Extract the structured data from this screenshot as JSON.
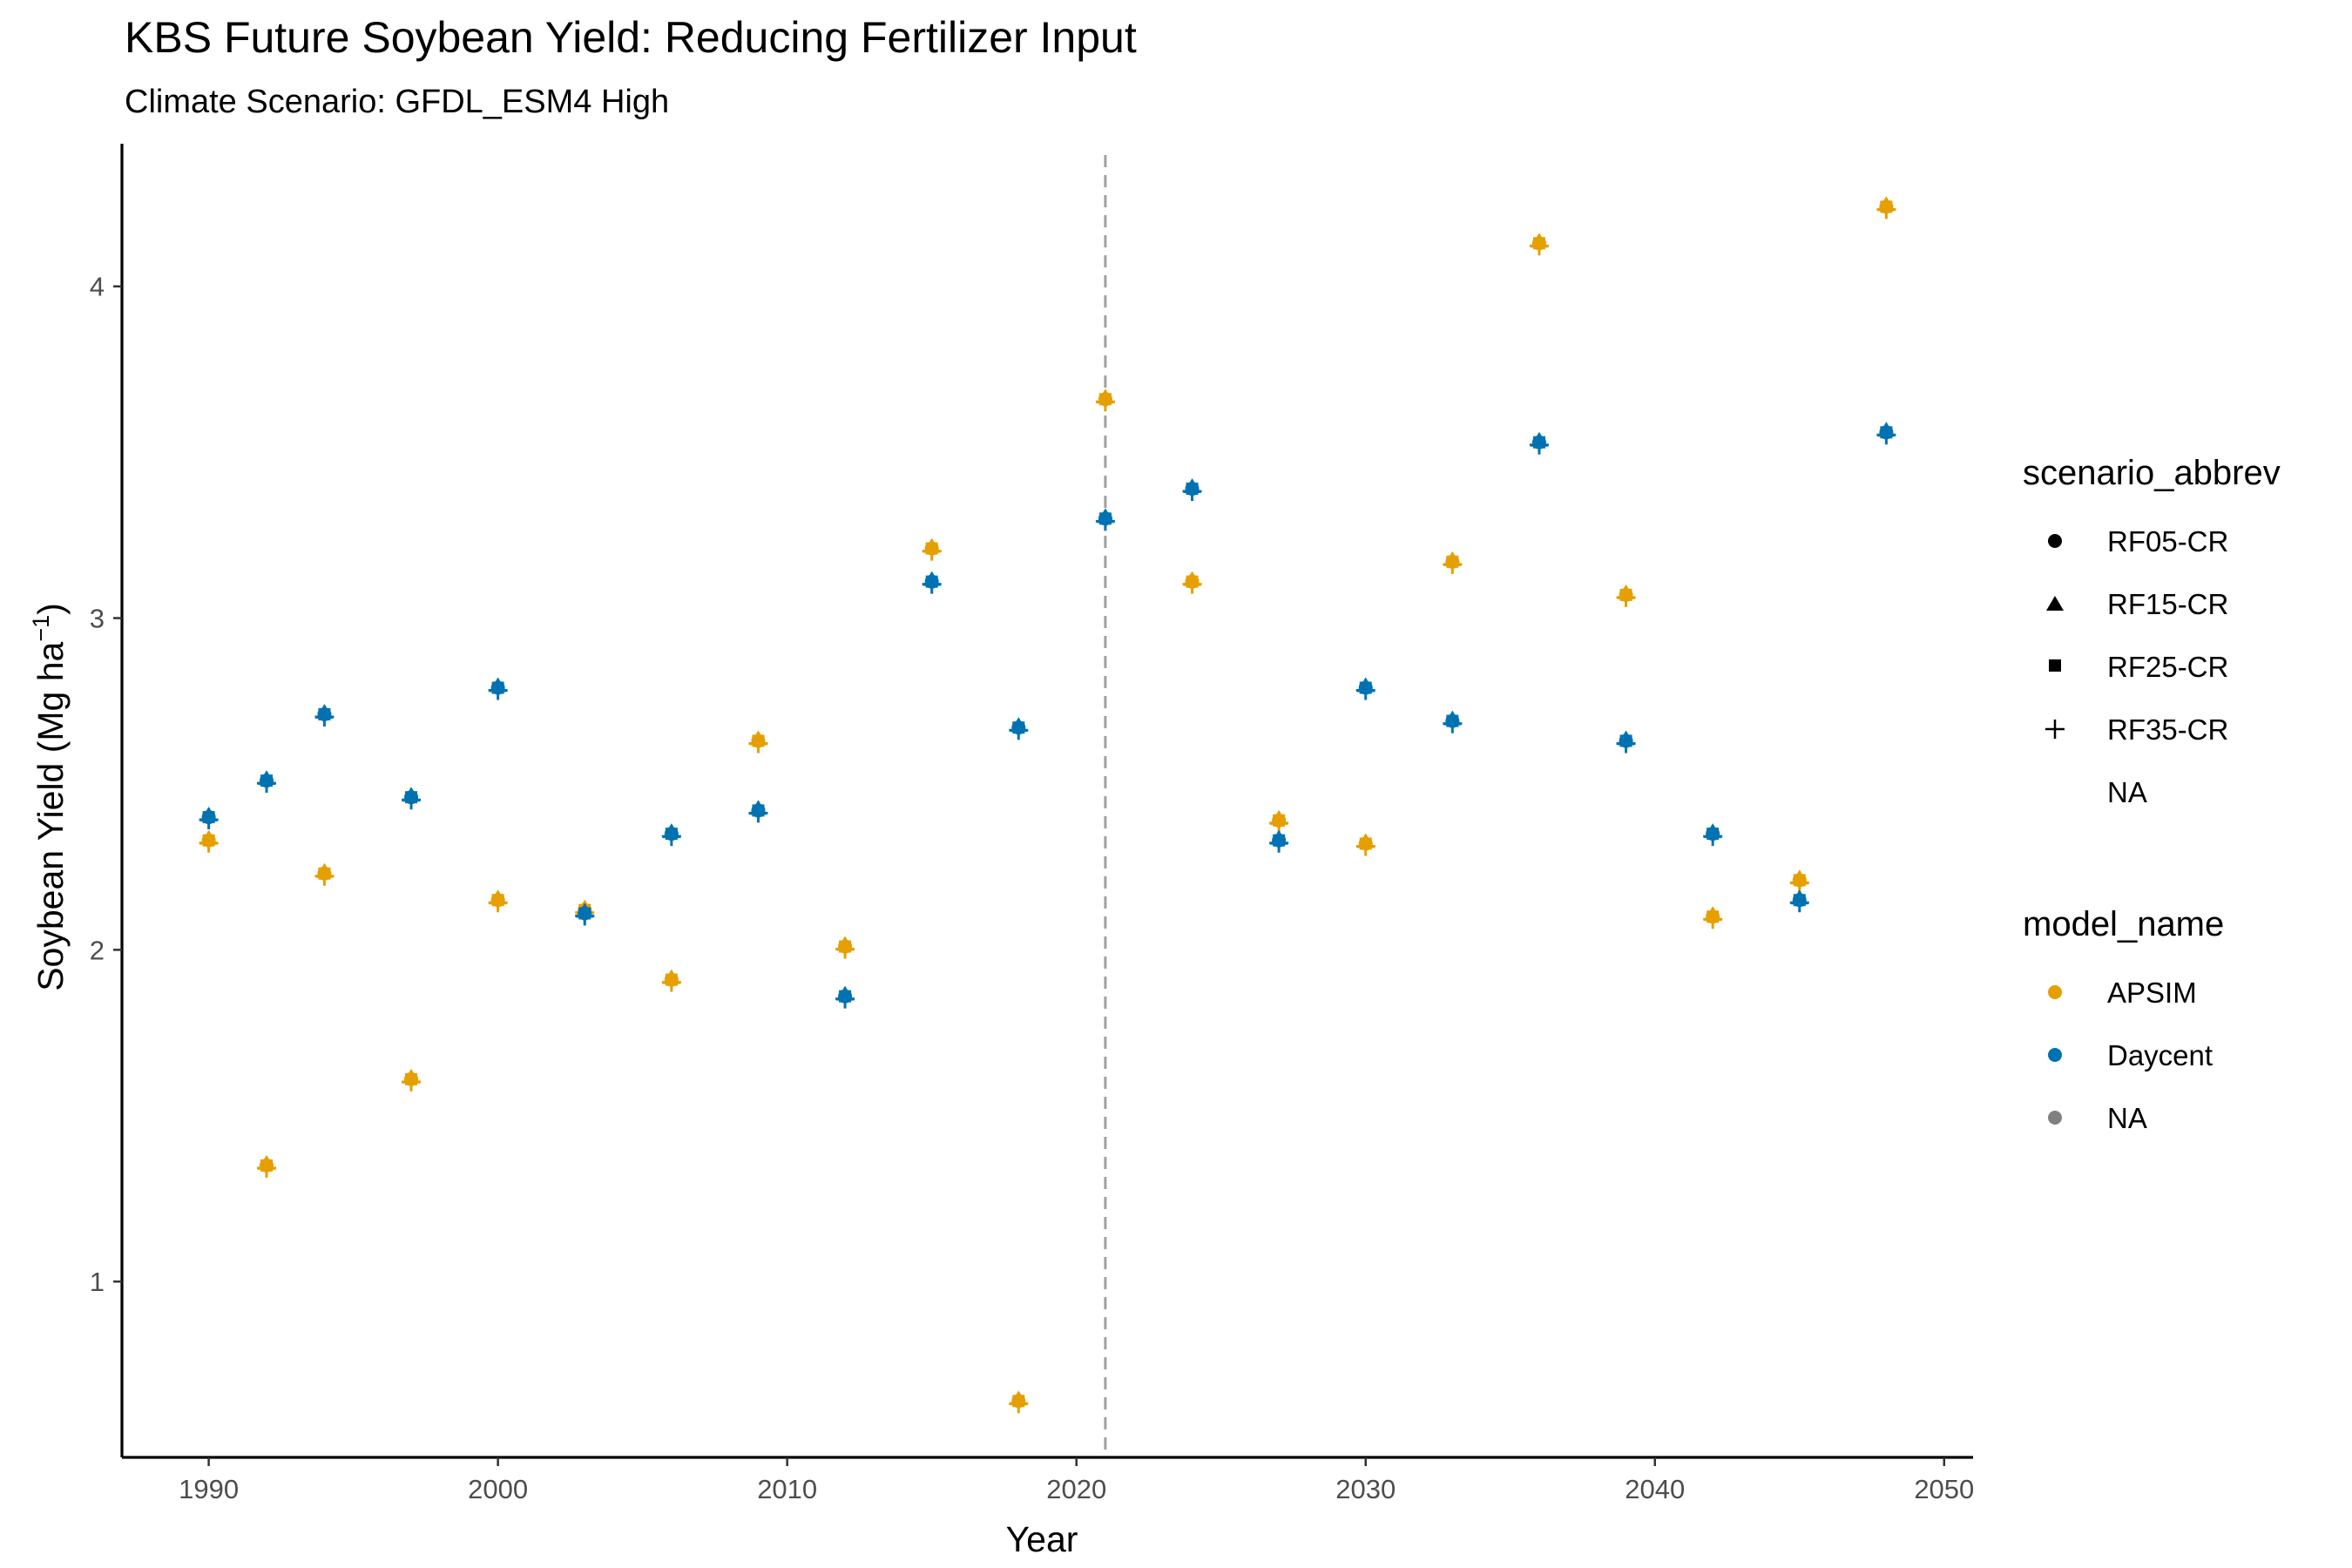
{
  "chart_data": {
    "type": "scatter",
    "title": "KBS Future Soybean Yield: Reducing Fertilizer Input",
    "subtitle": "Climate Scenario: GFDL_ESM4 High",
    "xlabel": "Year",
    "ylabel": {
      "text": "Soybean Yield (Mg ha",
      "superscript": "−1",
      "close": ")"
    },
    "xlim": [
      1987,
      2051
    ],
    "ylim": [
      0.47,
      4.43
    ],
    "xticks": [
      1990,
      2000,
      2010,
      2020,
      2030,
      2040,
      2050
    ],
    "yticks": [
      1,
      2,
      3,
      4
    ],
    "xtick_labels": [
      "1990",
      "2000",
      "2010",
      "2020",
      "2030",
      "2040",
      "2050"
    ],
    "ytick_labels": [
      "1",
      "2",
      "3",
      "4"
    ],
    "reference_line": {
      "x": 2021,
      "style": "dashed",
      "color": "#a0a0a0"
    },
    "grid": false,
    "legend_position": "right",
    "series": [
      {
        "name": "APSIM",
        "color": "#E69F00",
        "x": [
          1990,
          1992,
          1994,
          1997,
          2000,
          2003,
          2006,
          2009,
          2012,
          2015,
          2018,
          2021,
          2024,
          2027,
          2030,
          2033,
          2036,
          2039,
          2042,
          2045,
          2048
        ],
        "y": [
          2.33,
          1.35,
          2.23,
          1.61,
          2.15,
          2.12,
          1.91,
          2.63,
          2.01,
          3.21,
          0.64,
          3.66,
          3.11,
          2.39,
          2.32,
          3.17,
          4.13,
          3.07,
          2.1,
          2.21,
          4.24
        ]
      },
      {
        "name": "Daycent",
        "color": "#0072B2",
        "x": [
          1990,
          1992,
          1994,
          1997,
          2000,
          2003,
          2006,
          2009,
          2012,
          2015,
          2018,
          2021,
          2024,
          2027,
          2030,
          2033,
          2036,
          2039,
          2042,
          2045,
          2048
        ],
        "y": [
          2.4,
          2.51,
          2.71,
          2.46,
          2.79,
          2.11,
          2.35,
          2.42,
          1.86,
          3.11,
          2.67,
          3.3,
          3.39,
          2.33,
          2.79,
          2.69,
          3.53,
          2.63,
          2.35,
          2.15,
          3.56
        ]
      }
    ],
    "legends": [
      {
        "title": "scenario_abbrev",
        "items": [
          {
            "label": "RF05-CR",
            "shape": "circle"
          },
          {
            "label": "RF15-CR",
            "shape": "triangle"
          },
          {
            "label": "RF25-CR",
            "shape": "square"
          },
          {
            "label": "RF35-CR",
            "shape": "plus"
          },
          {
            "label": "NA",
            "shape": "none"
          }
        ]
      },
      {
        "title": "model_name",
        "items": [
          {
            "label": "APSIM",
            "color": "#E69F00"
          },
          {
            "label": "Daycent",
            "color": "#0072B2"
          },
          {
            "label": "NA",
            "color": "#808080"
          }
        ]
      }
    ]
  }
}
